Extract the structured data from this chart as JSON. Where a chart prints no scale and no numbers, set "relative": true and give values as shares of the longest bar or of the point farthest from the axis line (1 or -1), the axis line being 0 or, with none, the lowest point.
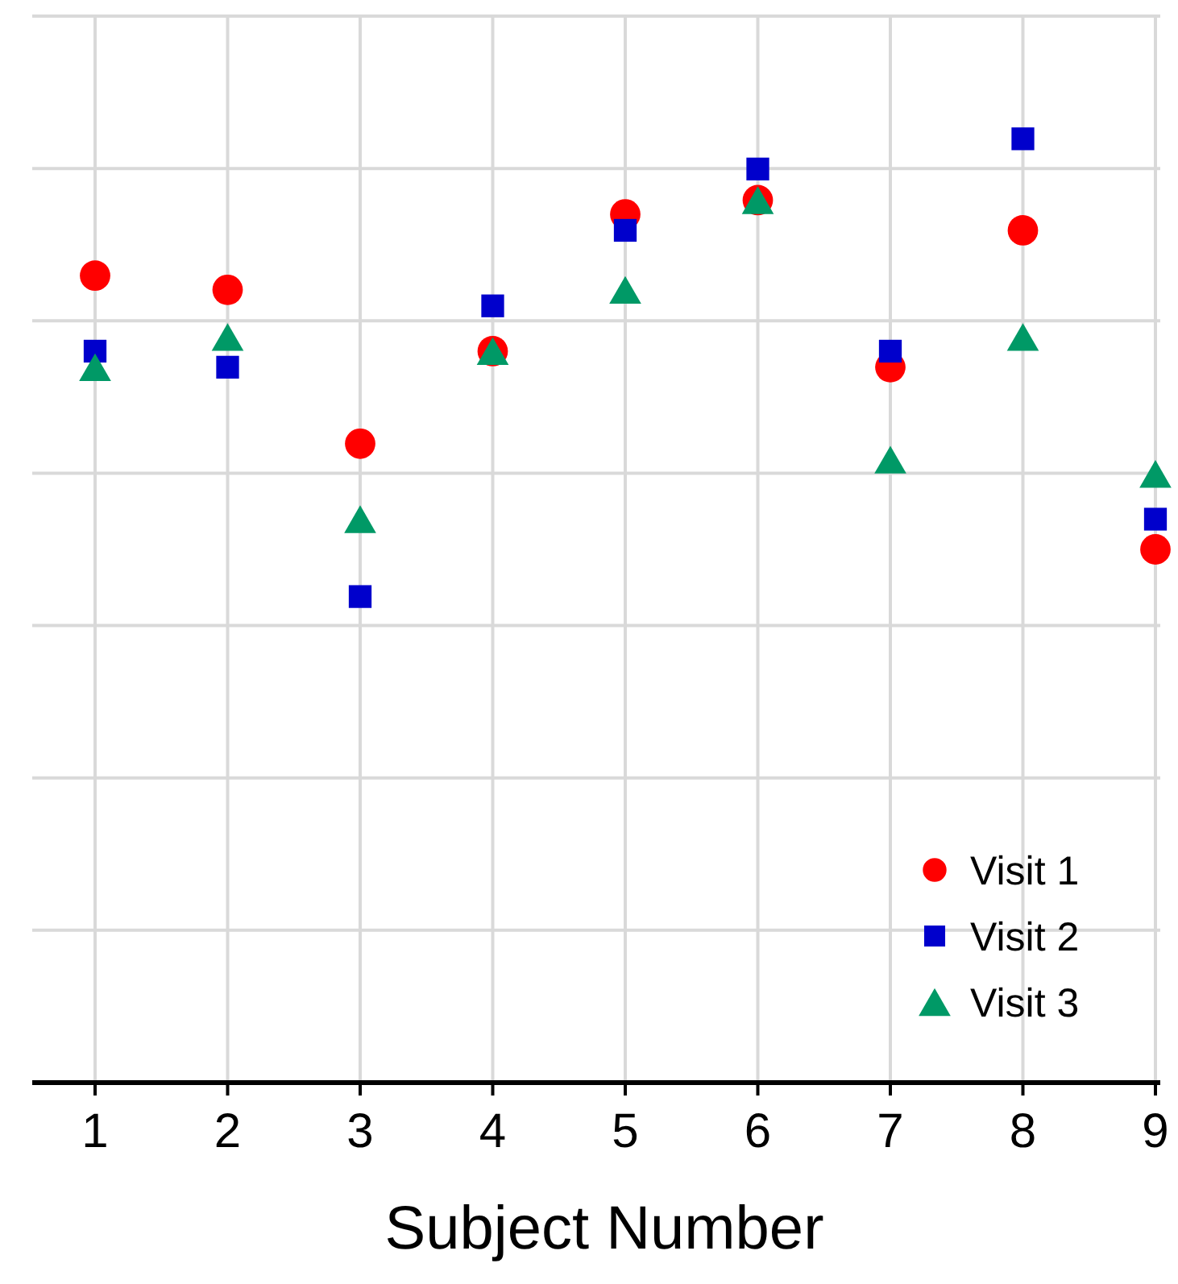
{
  "chart_data": {
    "type": "scatter",
    "xlabel": "Subject Number",
    "categories": [
      "1",
      "2",
      "3",
      "4",
      "5",
      "6",
      "7",
      "8",
      "9"
    ],
    "relative": true,
    "grid": true,
    "legend": "bottom right",
    "series": [
      {
        "name": "Visit 1",
        "color": "#ff0000",
        "marker": "circle",
        "values": [
          0.855,
          0.84,
          0.677,
          0.775,
          0.92,
          0.935,
          0.758,
          0.903,
          0.565
        ]
      },
      {
        "name": "Visit 2",
        "color": "#0000cc",
        "marker": "square",
        "values": [
          0.775,
          0.758,
          0.515,
          0.823,
          0.903,
          0.968,
          0.775,
          1,
          0.597
        ]
      },
      {
        "name": "Visit 3",
        "color": "#009966",
        "marker": "triangle",
        "values": [
          0.758,
          0.79,
          0.597,
          0.775,
          0.84,
          0.935,
          0.66,
          0.79,
          0.645
        ]
      }
    ]
  }
}
